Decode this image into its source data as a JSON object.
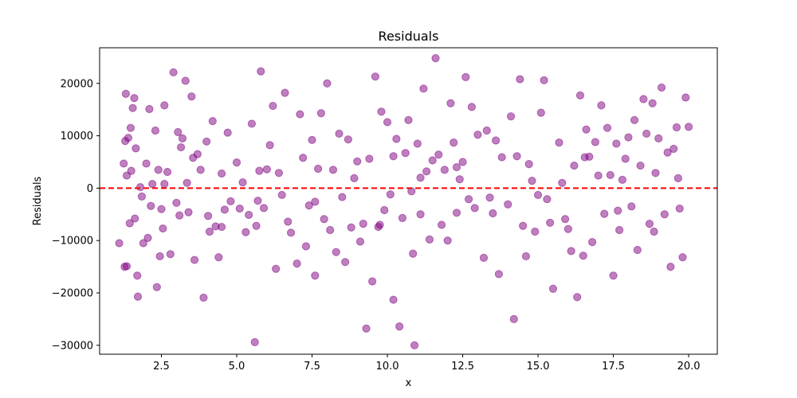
{
  "chart_data": {
    "type": "scatter",
    "title": "Residuals",
    "xlabel": "x",
    "ylabel": "Residuals",
    "xlim": [
      0.45,
      20.95
    ],
    "ylim": [
      -31700,
      26800
    ],
    "xticks": [
      2.5,
      5.0,
      7.5,
      10.0,
      12.5,
      15.0,
      17.5,
      20.0
    ],
    "xtick_labels": [
      "2.5",
      "5.0",
      "7.5",
      "10.0",
      "12.5",
      "15.0",
      "17.5",
      "20.0"
    ],
    "yticks": [
      -30000,
      -20000,
      -10000,
      0,
      10000,
      20000
    ],
    "ytick_labels": [
      "−30000",
      "−20000",
      "−10000",
      "0",
      "10000",
      "20000"
    ],
    "grid": false,
    "point_color": "#800080",
    "point_alpha": 0.5,
    "reference_line": {
      "y": 0,
      "color": "#ff0000",
      "style": "dashed"
    },
    "x": [
      1.1,
      1.25,
      1.28,
      1.3,
      1.32,
      1.35,
      1.4,
      1.45,
      1.48,
      1.5,
      1.55,
      1.6,
      1.62,
      1.65,
      1.7,
      1.72,
      1.8,
      1.85,
      1.9,
      2.0,
      2.05,
      2.1,
      2.15,
      2.2,
      2.3,
      2.35,
      2.4,
      2.45,
      2.5,
      2.55,
      2.6,
      2.7,
      2.8,
      2.9,
      3.0,
      3.05,
      3.1,
      3.2,
      3.3,
      3.35,
      3.4,
      3.5,
      3.55,
      3.6,
      3.7,
      3.8,
      3.9,
      4.0,
      4.05,
      4.1,
      4.2,
      4.3,
      4.4,
      4.5,
      4.6,
      4.7,
      4.8,
      5.0,
      5.1,
      5.2,
      5.3,
      5.4,
      5.5,
      5.6,
      5.65,
      5.7,
      5.8,
      5.9,
      6.0,
      6.1,
      6.2,
      6.3,
      6.4,
      6.5,
      6.6,
      6.8,
      7.0,
      7.1,
      7.2,
      7.3,
      7.4,
      7.5,
      7.6,
      7.7,
      7.8,
      7.9,
      8.0,
      8.1,
      8.2,
      8.3,
      8.4,
      8.5,
      8.6,
      8.7,
      8.8,
      9.0,
      9.1,
      9.2,
      9.3,
      9.4,
      9.5,
      9.6,
      9.7,
      9.8,
      9.9,
      10.0,
      10.1,
      10.2,
      10.3,
      10.4,
      10.5,
      10.6,
      10.7,
      10.8,
      10.9,
      11.0,
      11.1,
      11.2,
      11.3,
      11.4,
      11.5,
      11.6,
      11.7,
      11.8,
      11.9,
      12.0,
      12.1,
      12.2,
      12.3,
      12.4,
      12.5,
      12.6,
      12.7,
      12.8,
      12.9,
      13.0,
      13.2,
      13.3,
      13.5,
      13.6,
      13.7,
      13.8,
      14.0,
      14.1,
      14.2,
      14.3,
      14.4,
      14.5,
      14.7,
      14.8,
      14.9,
      15.0,
      15.1,
      15.2,
      15.3,
      15.5,
      15.7,
      15.8,
      15.9,
      16.0,
      16.1,
      16.2,
      16.3,
      16.4,
      16.5,
      16.6,
      16.7,
      16.8,
      16.9,
      17.0,
      17.1,
      17.2,
      17.3,
      17.4,
      17.5,
      17.6,
      17.7,
      17.8,
      17.9,
      18.0,
      18.1,
      18.2,
      18.3,
      18.4,
      18.5,
      18.6,
      18.7,
      18.8,
      18.9,
      19.0,
      19.1,
      19.2,
      19.3,
      19.4,
      19.5,
      19.6,
      19.7,
      19.8,
      19.9,
      20.0,
      1.35,
      2.6,
      3.15,
      4.5,
      5.75,
      6.7,
      7.6,
      8.9,
      9.75,
      10.2,
      11.1,
      12.3,
      13.4,
      14.6,
      15.4,
      16.55,
      17.65,
      18.85,
      19.65,
      10.85
    ],
    "y": [
      -10500,
      4700,
      -15000,
      9000,
      18000,
      2400,
      9600,
      -6700,
      11500,
      3300,
      15300,
      17200,
      -5800,
      7600,
      -16700,
      -20700,
      200,
      -1600,
      -10500,
      4700,
      -9500,
      15100,
      -3400,
      800,
      11000,
      -18900,
      3500,
      -13000,
      -4000,
      -7700,
      15800,
      3100,
      -12600,
      22100,
      -2800,
      10700,
      -5200,
      9500,
      20500,
      1000,
      -4600,
      17500,
      5800,
      -13700,
      6500,
      3500,
      -20900,
      8900,
      -5300,
      -8300,
      12800,
      -7300,
      -13200,
      2800,
      -4100,
      10600,
      -2500,
      4900,
      -3900,
      1100,
      -8400,
      -5100,
      12300,
      -29400,
      -7200,
      -2400,
      22300,
      -3800,
      3600,
      8200,
      15700,
      -15400,
      2900,
      -1300,
      18200,
      -8500,
      -14400,
      14100,
      5800,
      -11100,
      -3300,
      9200,
      -16700,
      3700,
      14300,
      -5900,
      20000,
      -8000,
      3500,
      -12200,
      10400,
      -1700,
      -14100,
      9300,
      -7500,
      5100,
      -10200,
      -6800,
      -26800,
      5600,
      -17800,
      21300,
      -7400,
      14600,
      -4200,
      12600,
      -1200,
      -21300,
      9400,
      -26400,
      -5700,
      6700,
      13000,
      -600,
      -30000,
      8500,
      -5000,
      19000,
      3200,
      -9800,
      5300,
      24800,
      6400,
      -7000,
      3500,
      -10000,
      16200,
      8700,
      -4700,
      1700,
      5000,
      21200,
      -2100,
      15500,
      -3800,
      10200,
      -13300,
      11000,
      -4800,
      9100,
      -16400,
      5900,
      -3100,
      13700,
      -25000,
      6100,
      20800,
      -7200,
      4600,
      1400,
      -8300,
      -1300,
      14400,
      20600,
      -2100,
      -19200,
      8700,
      1000,
      -5900,
      -7800,
      -12000,
      4300,
      -20800,
      17700,
      -12900,
      11200,
      6000,
      -10300,
      8800,
      2400,
      15800,
      -4900,
      11500,
      2500,
      -16700,
      8500,
      -8000,
      1600,
      5600,
      9700,
      -3500,
      13000,
      -11800,
      4300,
      17000,
      10400,
      -6800,
      16200,
      2900,
      9500,
      19200,
      -5000,
      6800,
      -15000,
      7500,
      11600,
      -3900,
      -13200,
      17300,
      11700,
      -14900,
      800,
      7800,
      -7400,
      3300,
      -6400,
      -2600,
      1900,
      -7000,
      6100,
      2000,
      4000,
      -1800,
      -13000,
      -6600,
      5900,
      -4300,
      -8300,
      1900,
      -12500
    ]
  }
}
